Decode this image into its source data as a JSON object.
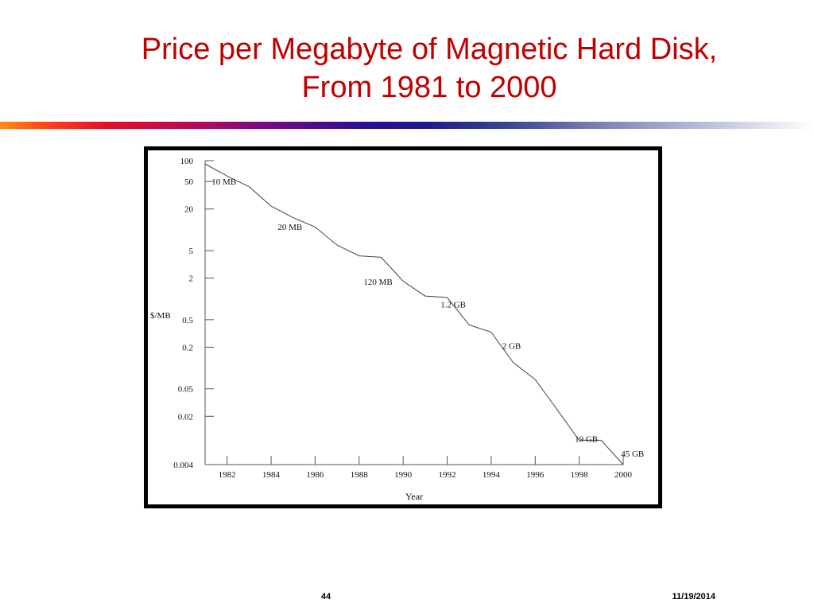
{
  "slide": {
    "title_line1": "Price per Megabyte of Magnetic Hard Disk,",
    "title_line2": "From 1981 to 2000",
    "page_number": "44",
    "date": "11/19/2014",
    "title_color": "#c00000"
  },
  "chart_data": {
    "type": "line",
    "title": "",
    "xlabel": "Year",
    "ylabel": "$/MB",
    "y_scale": "log",
    "ylim": [
      0.004,
      100
    ],
    "xlim": [
      1981,
      2000
    ],
    "x_ticks": [
      1982,
      1984,
      1986,
      1988,
      1990,
      1992,
      1994,
      1996,
      1998,
      2000
    ],
    "x_tick_labels": [
      "1982",
      "1984",
      "1986",
      "1988",
      "1990",
      "1992",
      "1994",
      "1996",
      "1998",
      "2000"
    ],
    "y_ticks": [
      100,
      50,
      20,
      5,
      2,
      0.5,
      0.2,
      0.05,
      0.02,
      0.004
    ],
    "y_tick_labels": [
      "100",
      "50",
      "20",
      "5",
      "2",
      "0.5",
      "0.2",
      "0.05",
      "0.02",
      "0.004"
    ],
    "grid": false,
    "series": [
      {
        "x": [
          1981,
          1982,
          1983,
          1984,
          1985,
          1986,
          1987,
          1988,
          1989,
          1990,
          1991,
          1992,
          1993,
          1994,
          1995,
          1996,
          1997,
          1998,
          1999,
          2000
        ],
        "y": [
          90,
          60,
          42,
          22,
          15,
          11,
          6,
          4.2,
          4,
          1.8,
          1.1,
          1.05,
          0.42,
          0.33,
          0.12,
          0.068,
          0.025,
          0.009,
          0.009,
          0.004
        ]
      }
    ],
    "annotations": [
      {
        "text": "10 MB",
        "x": 1981.3,
        "y": 45
      },
      {
        "text": "20 MB",
        "x": 1984.3,
        "y": 10
      },
      {
        "text": "120 MB",
        "x": 1988.2,
        "y": 1.6
      },
      {
        "text": "1.2 GB",
        "x": 1991.7,
        "y": 0.75
      },
      {
        "text": "2 GB",
        "x": 1994.5,
        "y": 0.19
      },
      {
        "text": "19 GB",
        "x": 1997.8,
        "y": 0.0085
      },
      {
        "text": "45 GB",
        "x": 1999.9,
        "y": 0.0052
      }
    ],
    "line_color": "#444444"
  }
}
